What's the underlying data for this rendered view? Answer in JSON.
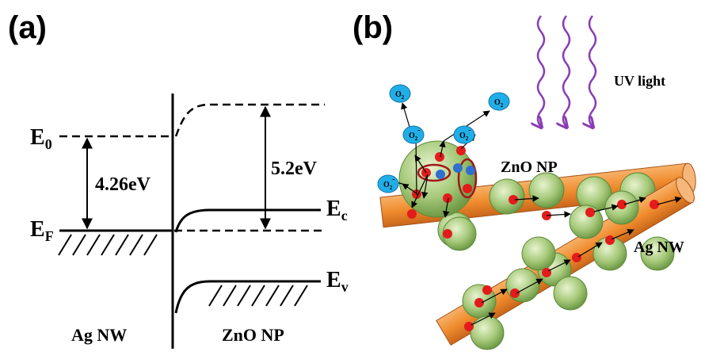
{
  "panels": {
    "a": {
      "label": "(a)",
      "levels": [
        {
          "symbol": "E",
          "subscript": "0"
        },
        {
          "symbol": "E",
          "subscript": "F"
        },
        {
          "symbol": "E",
          "subscript": "c"
        },
        {
          "symbol": "E",
          "subscript": "v"
        }
      ],
      "energies": [
        "4.26eV",
        "5.2eV"
      ],
      "regions": [
        "Ag NW",
        "ZnO NP"
      ]
    },
    "b": {
      "label": "(b)",
      "light": "UV light",
      "particle": "ZnO NP",
      "wire": "Ag NW",
      "oxygen": {
        "symbol": "O",
        "subscript": "2",
        "charge": "-"
      }
    }
  }
}
